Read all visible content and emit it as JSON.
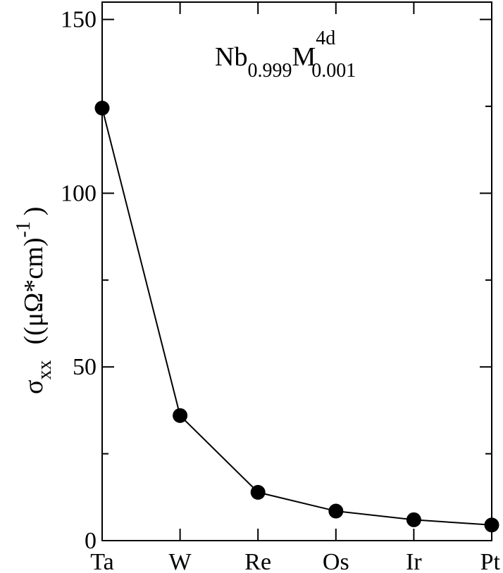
{
  "chart_data": {
    "type": "line",
    "categories": [
      "Ta",
      "W",
      "Re",
      "Os",
      "Ir",
      "Pt"
    ],
    "series": [
      {
        "values": [
          124.5,
          36.0,
          13.9,
          8.5,
          6.0,
          4.5
        ]
      }
    ],
    "title": {
      "base1": "Nb",
      "sub1": "0.999",
      "base2": "M",
      "sup2": "4d",
      "sub2": "0.001"
    },
    "ylabel": {
      "symbol": "σ",
      "subscript": "xx",
      "units": "((μΩ*cm)",
      "superscript": "-1",
      "close": ")"
    },
    "ylim": [
      0,
      155
    ],
    "yticks_major": [
      0,
      50,
      100,
      150
    ],
    "yticks_minor": [
      25,
      75,
      125
    ],
    "grid": false,
    "marker": "filled-circle",
    "color": "#000000"
  }
}
